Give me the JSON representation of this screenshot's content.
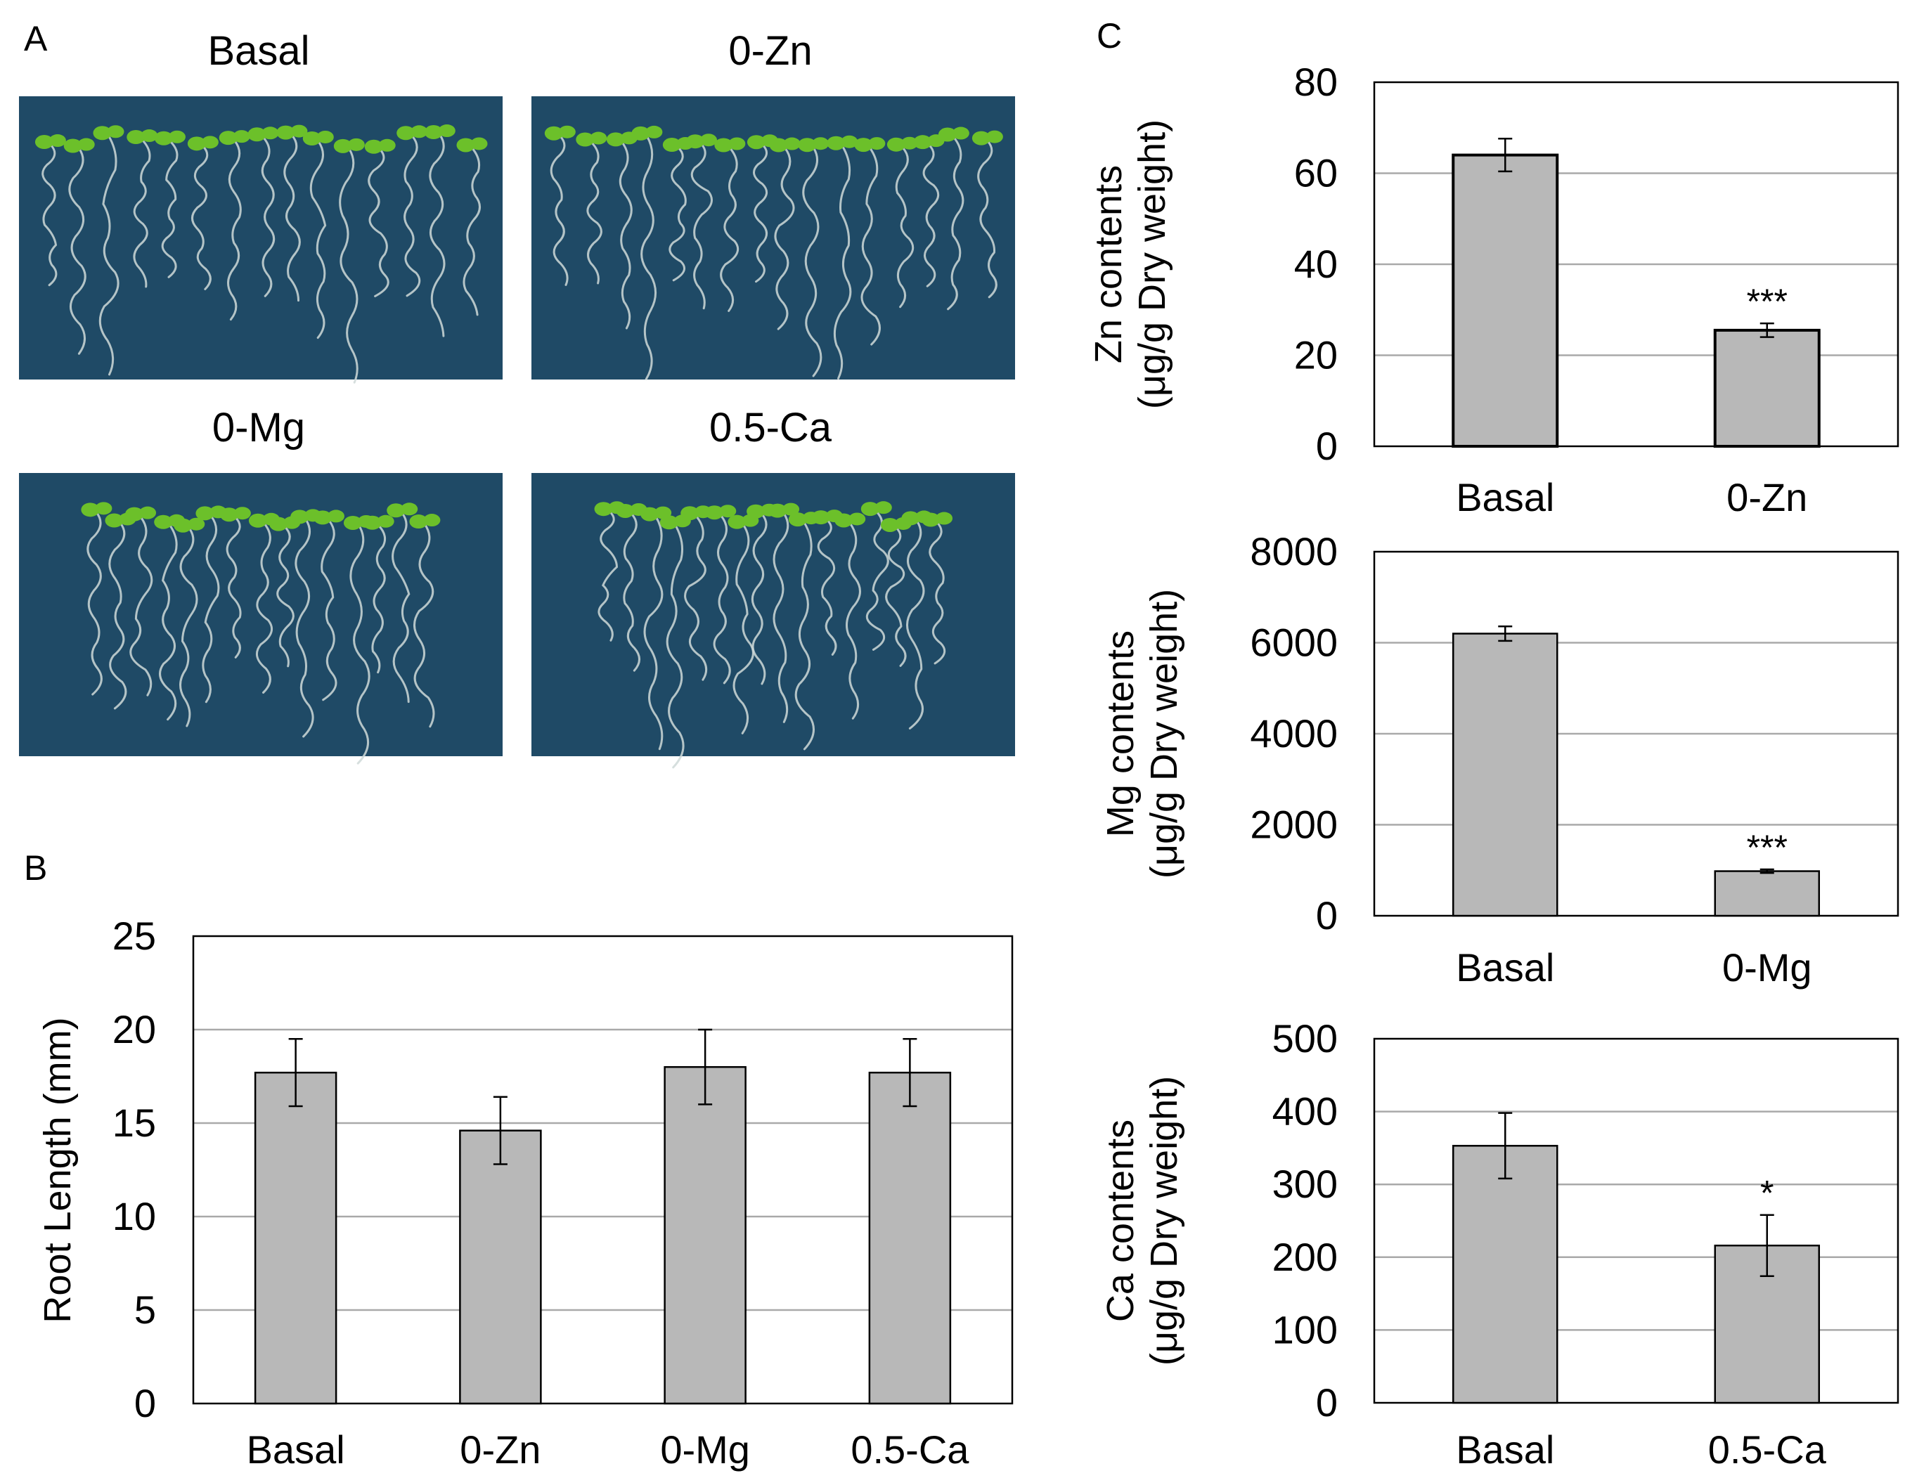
{
  "panels": {
    "a": "A",
    "b": "B",
    "c": "C"
  },
  "photos": [
    {
      "title": "Basal"
    },
    {
      "title": "0-Zn"
    },
    {
      "title": "0-Mg"
    },
    {
      "title": "0.5-Ca"
    }
  ],
  "colors": {
    "bar": "#b8b8b8",
    "plate": "#1f4a66",
    "grid": "#a9a9a9",
    "leaf": "#6cc02a",
    "root": "#cfd9d8"
  },
  "chart_data": [
    {
      "id": "B",
      "type": "bar",
      "categories": [
        "Basal",
        "0-Zn",
        "0-Mg",
        "0.5-Ca"
      ],
      "values": [
        17.7,
        14.6,
        18.0,
        17.7
      ],
      "errors": [
        1.8,
        1.8,
        2.0,
        1.8
      ],
      "significance": [
        "",
        "",
        "",
        ""
      ],
      "ylabel": "Root Length (mm)",
      "ylim": [
        0,
        25
      ],
      "yticks": [
        "0",
        "5",
        "10",
        "15",
        "20",
        "25"
      ],
      "grid": true
    },
    {
      "id": "C-Zn",
      "type": "bar",
      "categories": [
        "Basal",
        "0-Zn"
      ],
      "values": [
        64,
        25.5
      ],
      "errors": [
        3.6,
        1.5
      ],
      "significance": [
        "",
        "***"
      ],
      "ylabel": [
        "Zn contents",
        "(μg/g Dry weight)"
      ],
      "ylim": [
        0,
        80
      ],
      "yticks": [
        "0",
        "20",
        "40",
        "60",
        "80"
      ],
      "grid": true
    },
    {
      "id": "C-Mg",
      "type": "bar",
      "categories": [
        "Basal",
        "0-Mg"
      ],
      "values": [
        6200,
        980
      ],
      "errors": [
        160,
        40
      ],
      "significance": [
        "",
        "***"
      ],
      "ylabel": [
        "Mg contents",
        "(μg/g Dry weight)"
      ],
      "ylim": [
        0,
        8000
      ],
      "yticks": [
        "0",
        "2000",
        "4000",
        "6000",
        "8000"
      ],
      "grid": true
    },
    {
      "id": "C-Ca",
      "type": "bar",
      "categories": [
        "Basal",
        "0.5-Ca"
      ],
      "values": [
        353,
        216
      ],
      "errors": [
        45,
        42
      ],
      "significance": [
        "",
        "*"
      ],
      "ylabel": [
        "Ca contents",
        "(μg/g Dry weight)"
      ],
      "ylim": [
        0,
        500
      ],
      "yticks": [
        "0",
        "100",
        "200",
        "300",
        "400",
        "500"
      ],
      "grid": true
    }
  ]
}
